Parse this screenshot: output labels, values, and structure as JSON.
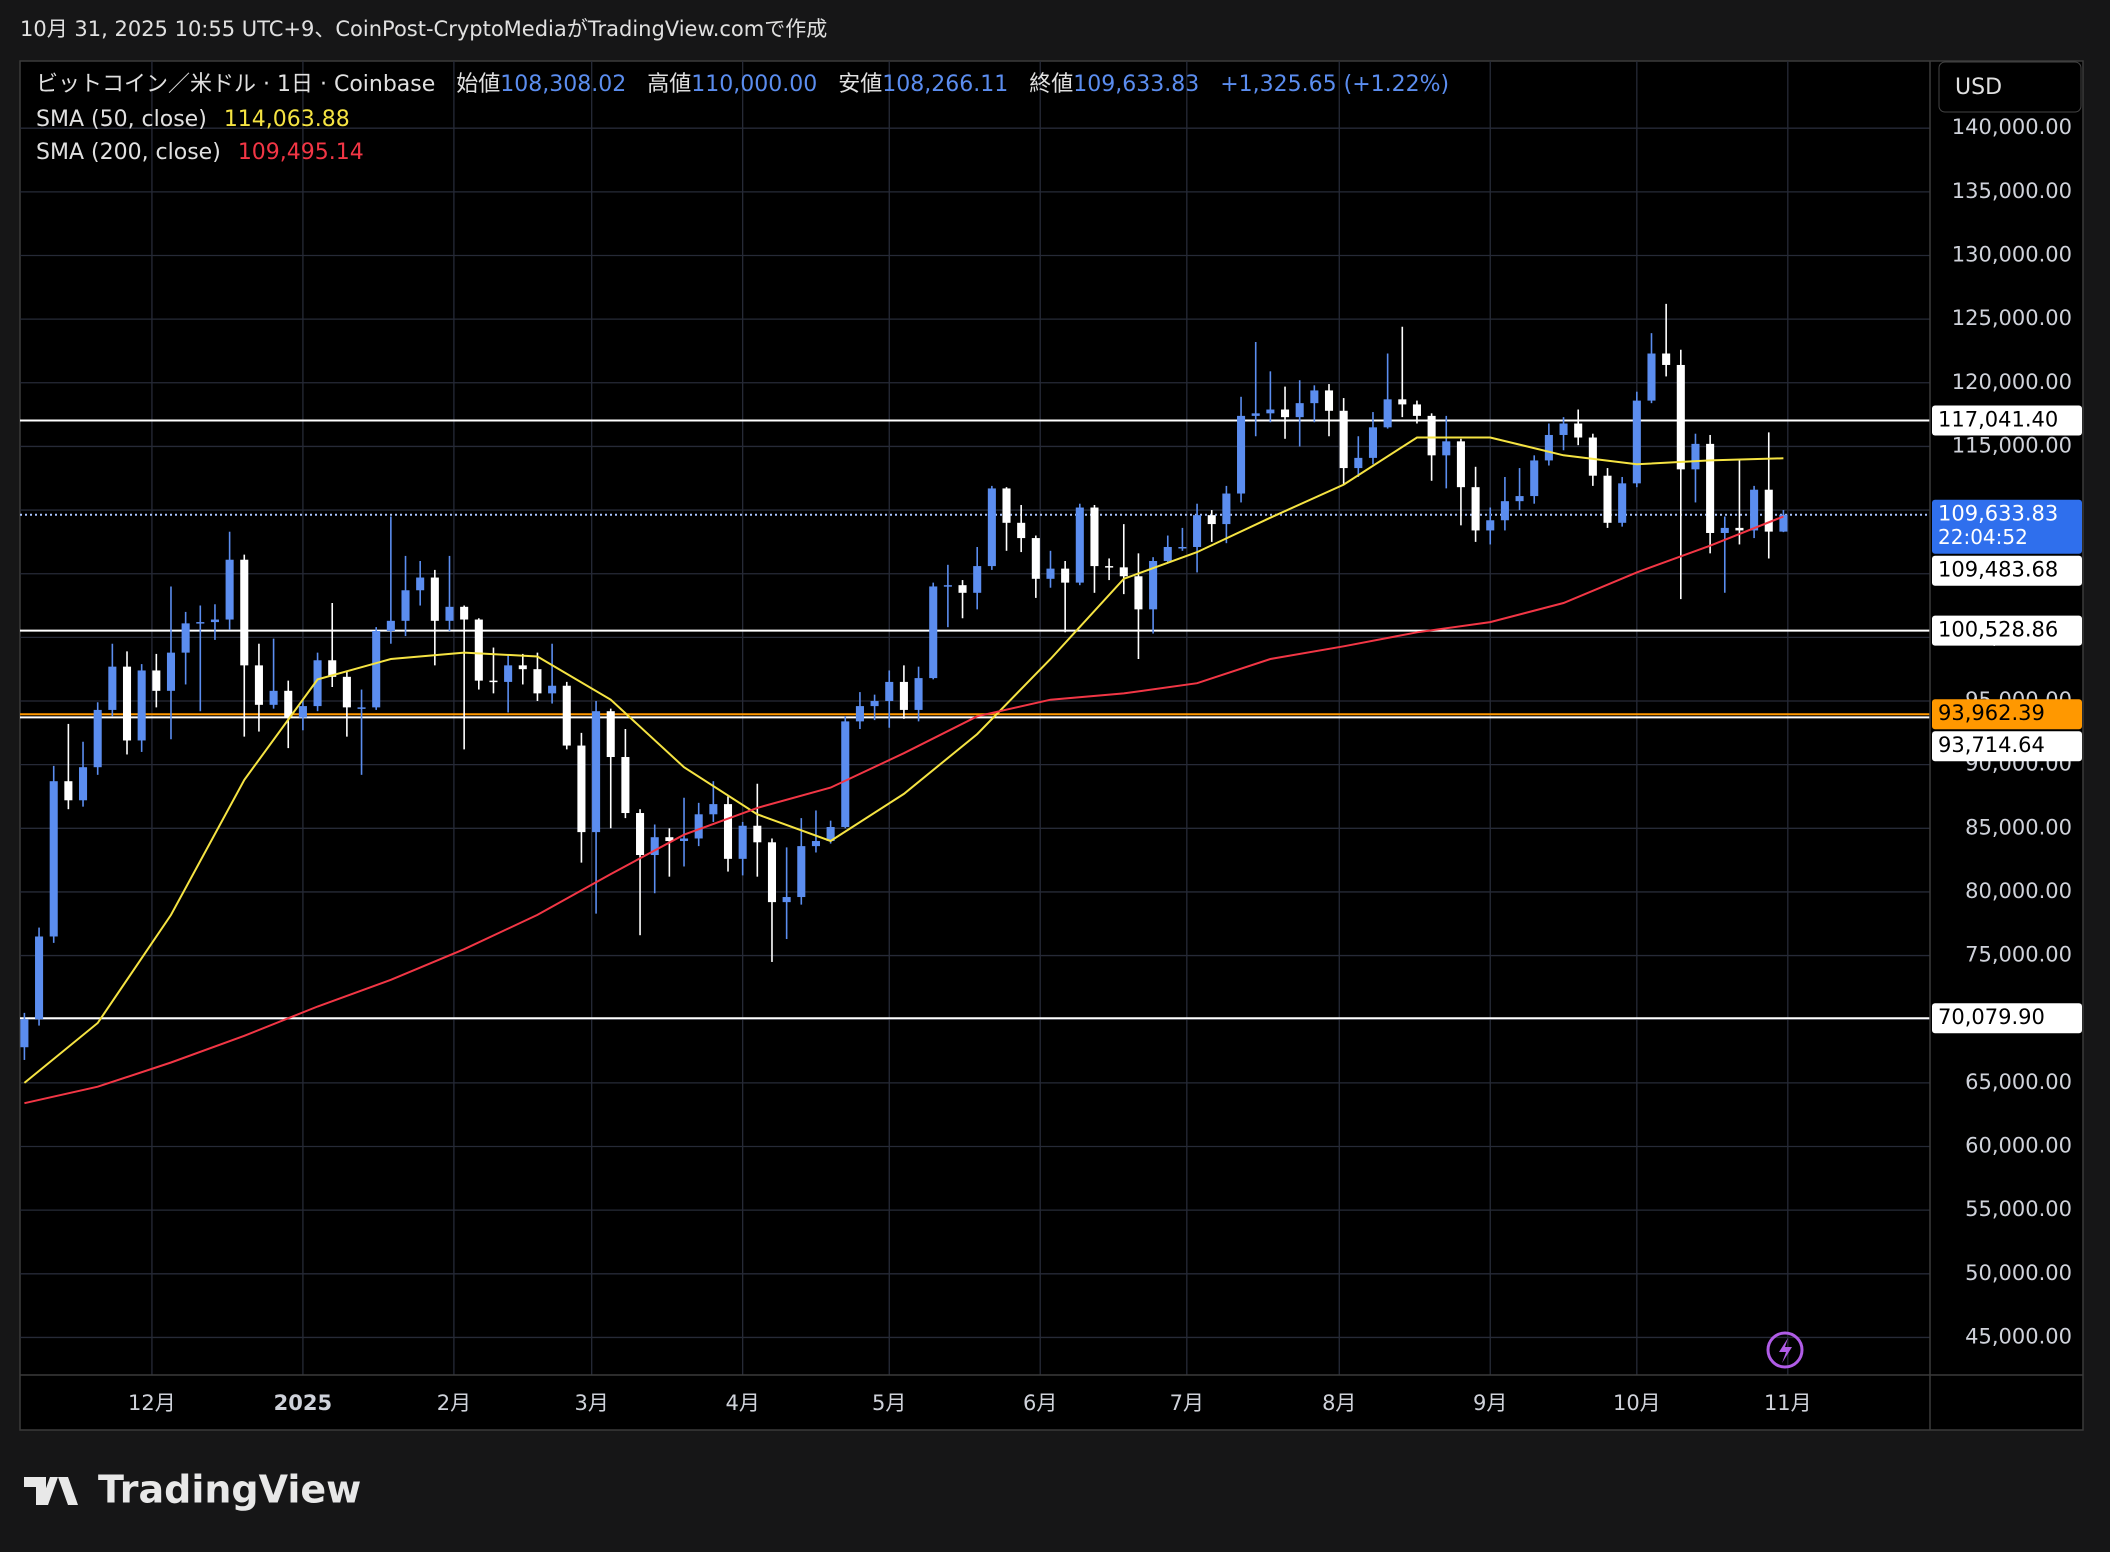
{
  "header": {
    "caption": "10月 31, 2025 10:55 UTC+9、CoinPost-CryptoMediaがTradingView.comで作成"
  },
  "footer": {
    "brand": "TradingView"
  },
  "chart_data": {
    "type": "candlestick",
    "currency": "USD",
    "legend": {
      "symbol": "ビットコイン／米ドル · 1日 · Coinbase",
      "ohlc": [
        {
          "name": "始値",
          "value": "108,308.02"
        },
        {
          "name": "高値",
          "value": "110,000.00"
        },
        {
          "name": "安値",
          "value": "108,266.11"
        },
        {
          "name": "終値",
          "value": "109,633.83"
        }
      ],
      "change": "+1,325.65 (+1.22%)"
    },
    "up_color": "#5b8def",
    "down_color": "#ffffff",
    "values": [
      [
        67800,
        70500,
        66800,
        70000
      ],
      [
        70000,
        77200,
        69500,
        76500
      ],
      [
        76500,
        89900,
        76000,
        88700
      ],
      [
        88700,
        93200,
        86500,
        87200
      ],
      [
        87200,
        91800,
        86700,
        89800
      ],
      [
        89800,
        94900,
        89200,
        94300
      ],
      [
        94300,
        99500,
        93800,
        97700
      ],
      [
        97700,
        98900,
        90800,
        91900
      ],
      [
        91900,
        97900,
        91000,
        97400
      ],
      [
        97400,
        98700,
        94500,
        95800
      ],
      [
        95800,
        104000,
        92000,
        98800
      ],
      [
        98800,
        102000,
        96300,
        101100
      ],
      [
        101100,
        102500,
        94200,
        101200
      ],
      [
        101200,
        102600,
        99800,
        101400
      ],
      [
        101400,
        108300,
        100600,
        106100
      ],
      [
        106100,
        106500,
        92200,
        97800
      ],
      [
        97800,
        99500,
        92600,
        94700
      ],
      [
        94700,
        99900,
        94400,
        95800
      ],
      [
        95800,
        96600,
        91300,
        93700
      ],
      [
        93700,
        95200,
        92700,
        94600
      ],
      [
        94600,
        98800,
        94200,
        98200
      ],
      [
        98200,
        102700,
        96100,
        96900
      ],
      [
        96900,
        97300,
        92200,
        94500
      ],
      [
        94500,
        95900,
        89200,
        94500
      ],
      [
        94500,
        100800,
        94300,
        100500
      ],
      [
        100500,
        109500,
        99500,
        101300
      ],
      [
        101300,
        106400,
        100100,
        103700
      ],
      [
        103700,
        106000,
        102500,
        104700
      ],
      [
        104700,
        105300,
        97800,
        101300
      ],
      [
        101300,
        106400,
        100500,
        102400
      ],
      [
        102400,
        102500,
        91200,
        101400
      ],
      [
        101400,
        101500,
        95900,
        96600
      ],
      [
        96600,
        99200,
        95600,
        96500
      ],
      [
        96500,
        98600,
        94100,
        97800
      ],
      [
        97800,
        98700,
        96300,
        97500
      ],
      [
        97500,
        98800,
        95000,
        95600
      ],
      [
        95600,
        99500,
        94800,
        96200
      ],
      [
        96200,
        96500,
        91200,
        91500
      ],
      [
        91500,
        92500,
        82300,
        84700
      ],
      [
        84700,
        95000,
        78300,
        94200
      ],
      [
        94200,
        94400,
        85000,
        90600
      ],
      [
        90600,
        92800,
        85800,
        86200
      ],
      [
        86200,
        86500,
        76600,
        82900
      ],
      [
        82900,
        85300,
        79900,
        84300
      ],
      [
        84300,
        85000,
        81200,
        84000
      ],
      [
        84000,
        87400,
        82000,
        84200
      ],
      [
        84200,
        87000,
        83600,
        86100
      ],
      [
        86100,
        88700,
        85500,
        86900
      ],
      [
        86900,
        87500,
        81600,
        82600
      ],
      [
        82600,
        85500,
        81300,
        85200
      ],
      [
        85200,
        88500,
        81200,
        83900
      ],
      [
        83900,
        84200,
        74500,
        79200
      ],
      [
        79200,
        83500,
        76300,
        79600
      ],
      [
        79600,
        85800,
        79000,
        83600
      ],
      [
        83600,
        86400,
        83100,
        84000
      ],
      [
        84000,
        85600,
        83800,
        85100
      ],
      [
        85100,
        93800,
        85000,
        93400
      ],
      [
        93400,
        95700,
        92800,
        94600
      ],
      [
        94600,
        95500,
        93500,
        95000
      ],
      [
        95000,
        97400,
        92900,
        96500
      ],
      [
        96500,
        97800,
        93600,
        94300
      ],
      [
        94300,
        97700,
        93400,
        96800
      ],
      [
        96800,
        104300,
        96700,
        104000
      ],
      [
        104000,
        105700,
        100800,
        104100
      ],
      [
        104100,
        104500,
        101500,
        103500
      ],
      [
        103500,
        107100,
        102200,
        105600
      ],
      [
        105600,
        111900,
        105300,
        111700
      ],
      [
        111700,
        111800,
        106800,
        109000
      ],
      [
        109000,
        110400,
        106700,
        107800
      ],
      [
        107800,
        108000,
        103100,
        104600
      ],
      [
        104600,
        106800,
        103900,
        105400
      ],
      [
        105400,
        106000,
        100400,
        104300
      ],
      [
        104300,
        110500,
        104100,
        110200
      ],
      [
        110200,
        110400,
        103500,
        105600
      ],
      [
        105600,
        106200,
        104500,
        105500
      ],
      [
        105500,
        108900,
        103400,
        104800
      ],
      [
        104800,
        106600,
        98300,
        102200
      ],
      [
        102200,
        106300,
        100300,
        106000
      ],
      [
        106000,
        108000,
        105800,
        107100
      ],
      [
        107100,
        108600,
        106800,
        107100
      ],
      [
        107100,
        110500,
        105100,
        109600
      ],
      [
        109600,
        110000,
        107500,
        108900
      ],
      [
        108900,
        111900,
        107400,
        111300
      ],
      [
        111300,
        118900,
        110600,
        117400
      ],
      [
        117400,
        123200,
        115800,
        117600
      ],
      [
        117600,
        120900,
        116900,
        117900
      ],
      [
        117900,
        119700,
        115600,
        117300
      ],
      [
        117300,
        120200,
        115000,
        118400
      ],
      [
        118400,
        119800,
        116900,
        119400
      ],
      [
        119400,
        119900,
        115800,
        117800
      ],
      [
        117800,
        118800,
        112000,
        113300
      ],
      [
        113300,
        115800,
        112600,
        114100
      ],
      [
        114100,
        117700,
        113600,
        116500
      ],
      [
        116500,
        122300,
        116400,
        118700
      ],
      [
        118700,
        124400,
        117300,
        118300
      ],
      [
        118300,
        118600,
        116800,
        117400
      ],
      [
        117400,
        117600,
        112300,
        114300
      ],
      [
        114300,
        117400,
        111700,
        115400
      ],
      [
        115400,
        115600,
        108800,
        111800
      ],
      [
        111800,
        113400,
        107500,
        108400
      ],
      [
        108400,
        110200,
        107300,
        109200
      ],
      [
        109200,
        112600,
        108400,
        110700
      ],
      [
        110700,
        113300,
        110000,
        111100
      ],
      [
        111100,
        114300,
        110500,
        113900
      ],
      [
        113900,
        116800,
        113500,
        115900
      ],
      [
        115900,
        117300,
        114700,
        116800
      ],
      [
        116800,
        117900,
        115100,
        115700
      ],
      [
        115700,
        116000,
        111900,
        112700
      ],
      [
        112700,
        113300,
        108600,
        109000
      ],
      [
        109000,
        112600,
        108700,
        112100
      ],
      [
        112100,
        119300,
        111800,
        118600
      ],
      [
        118600,
        123900,
        118400,
        122300
      ],
      [
        122300,
        126200,
        120500,
        121400
      ],
      [
        121400,
        122600,
        103000,
        113200
      ],
      [
        113200,
        116000,
        110600,
        115200
      ],
      [
        115200,
        115900,
        106600,
        108200
      ],
      [
        108200,
        109500,
        103500,
        108600
      ],
      [
        108600,
        113900,
        107300,
        108400
      ],
      [
        108400,
        111900,
        107800,
        111600
      ],
      [
        111600,
        116100,
        106200,
        108308.02
      ],
      [
        108308.02,
        110000,
        108266.11,
        109633.83
      ]
    ],
    "series": [
      {
        "name": "SMA (50, close)",
        "last_label": "114,063.88",
        "color": "#f5e342",
        "x": [
          0,
          5,
          10,
          15,
          20,
          25,
          30,
          35,
          40,
          45,
          50,
          55,
          60,
          65,
          70,
          75,
          80,
          85,
          90,
          95,
          100,
          105,
          110,
          115,
          120
        ],
        "values": [
          65000,
          69700,
          78200,
          88800,
          96700,
          98300,
          98800,
          98500,
          95100,
          89800,
          86100,
          84000,
          87700,
          92400,
          98300,
          104600,
          106700,
          109400,
          112000,
          115700,
          115700,
          114300,
          113600,
          113900,
          114063.88
        ]
      },
      {
        "name": "SMA (200, close)",
        "last_label": "109,495.14",
        "color": "#f23645",
        "x": [
          0,
          5,
          10,
          15,
          20,
          25,
          30,
          35,
          40,
          45,
          50,
          55,
          60,
          65,
          70,
          75,
          80,
          85,
          90,
          95,
          100,
          105,
          110,
          115,
          120
        ],
        "values": [
          63400,
          64700,
          66600,
          68700,
          71000,
          73100,
          75500,
          78200,
          81400,
          84500,
          86600,
          88200,
          90900,
          93800,
          95100,
          95600,
          96400,
          98300,
          99300,
          100400,
          101200,
          102700,
          105100,
          107200,
          109495.14
        ]
      }
    ],
    "price_lines": [
      {
        "value": 117041.4,
        "label": "117,041.40",
        "color": "#ffffff",
        "text_color": "#000000",
        "line": "solid"
      },
      {
        "value": 109633.83,
        "label": "109,633.83",
        "sub_label": "22:04:52",
        "color": "#2f6fed",
        "text_color": "#ffffff",
        "line": "dotted"
      },
      {
        "value": 109483.68,
        "label": "109,483.68",
        "color": "#ffffff",
        "text_color": "#000000",
        "line": "none"
      },
      {
        "value": 100528.86,
        "label": "100,528.86",
        "color": "#ffffff",
        "text_color": "#000000",
        "line": "solid"
      },
      {
        "value": 93962.39,
        "label": "93,962.39",
        "color": "#ff9800",
        "text_color": "#000000",
        "line": "solid"
      },
      {
        "value": 93714.64,
        "label": "93,714.64",
        "color": "#ffffff",
        "text_color": "#000000",
        "line": "solid"
      },
      {
        "value": 70079.9,
        "label": "70,079.90",
        "color": "#ffffff",
        "text_color": "#000000",
        "line": "solid"
      }
    ],
    "xlim": [
      -0.3,
      130
    ],
    "xticks": [
      {
        "value": 8.7,
        "label": "12月"
      },
      {
        "value": 19,
        "label": "2025"
      },
      {
        "value": 29.3,
        "label": "2月"
      },
      {
        "value": 38.7,
        "label": "3月"
      },
      {
        "value": 49,
        "label": "4月"
      },
      {
        "value": 59,
        "label": "5月"
      },
      {
        "value": 69.3,
        "label": "6月"
      },
      {
        "value": 79.3,
        "label": "7月"
      },
      {
        "value": 89.7,
        "label": "8月"
      },
      {
        "value": 100,
        "label": "9月"
      },
      {
        "value": 110,
        "label": "10月"
      },
      {
        "value": 120.3,
        "label": "11月"
      }
    ],
    "ylim": [
      42050,
      145280
    ],
    "yticks": [
      {
        "value": 45000,
        "label": "45,000.00"
      },
      {
        "value": 50000,
        "label": "50,000.00"
      },
      {
        "value": 55000,
        "label": "55,000.00"
      },
      {
        "value": 60000,
        "label": "60,000.00"
      },
      {
        "value": 65000,
        "label": "65,000.00"
      },
      {
        "value": 70000,
        "label": "70,000.00"
      },
      {
        "value": 75000,
        "label": "75,000.00"
      },
      {
        "value": 80000,
        "label": "80,000.00"
      },
      {
        "value": 85000,
        "label": "85,000.00"
      },
      {
        "value": 90000,
        "label": "90,000.00"
      },
      {
        "value": 95000,
        "label": "95,000.00"
      },
      {
        "value": 100000,
        "label": "100,000.00"
      },
      {
        "value": 105000,
        "label": "105,000.00"
      },
      {
        "value": 110000,
        "label": "110,000.00"
      },
      {
        "value": 115000,
        "label": "115,000.00"
      },
      {
        "value": 120000,
        "label": "120,000.00"
      },
      {
        "value": 125000,
        "label": "125,000.00"
      },
      {
        "value": 130000,
        "label": "130,000.00"
      },
      {
        "value": 135000,
        "label": "135,000.00"
      },
      {
        "value": 140000,
        "label": "140,000.00"
      }
    ],
    "grid": true,
    "grid_color": "#262a37"
  }
}
